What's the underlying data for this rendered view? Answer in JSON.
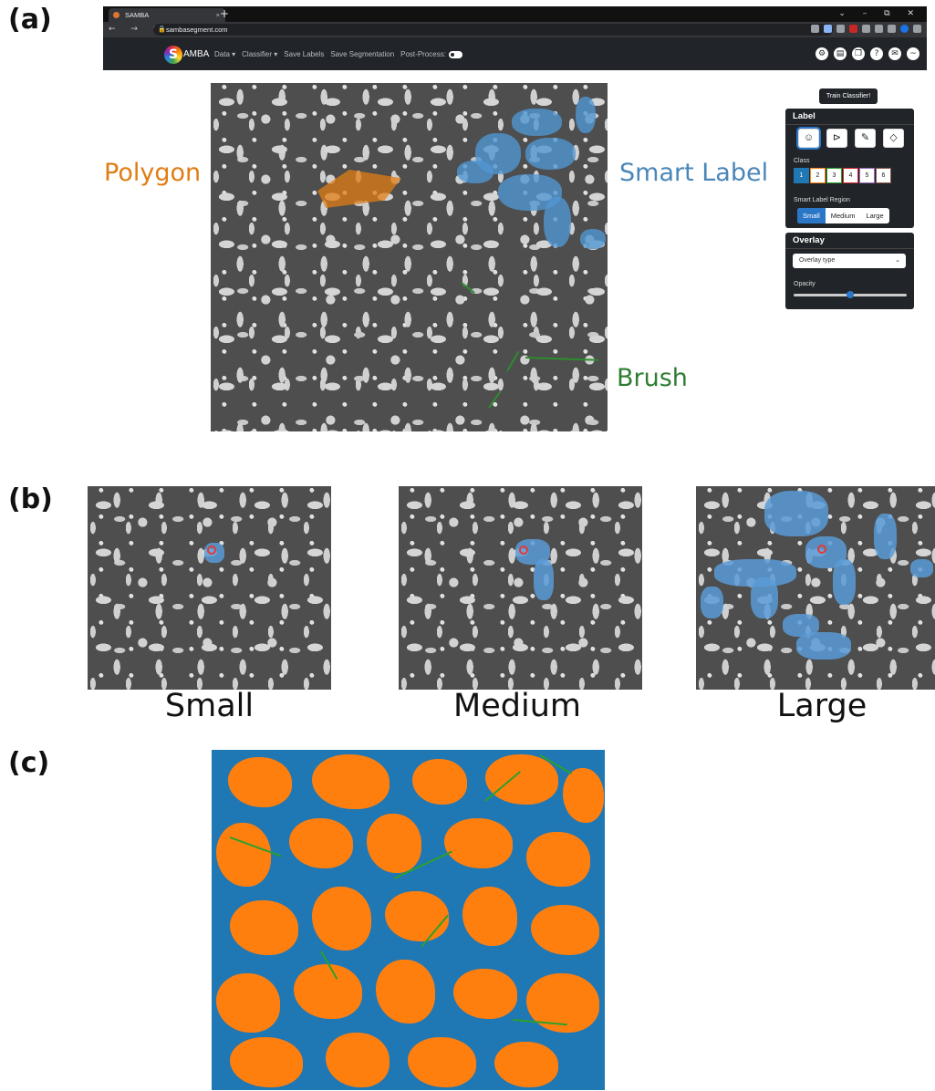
{
  "panels": {
    "a": "(a)",
    "b": "(b)",
    "c": "(c)"
  },
  "browser": {
    "tab_title": "SAMBA",
    "tab_close": "×",
    "new_tab": "+",
    "window_controls": "⌄ – ⧉ ✕",
    "nav_icons": "← → C",
    "url": "sambasegment.com"
  },
  "app": {
    "logo_s": "S",
    "logo_text": "AMBA",
    "nav": [
      "Data ▾",
      "Classifier ▾",
      "Save Labels",
      "Save Segmentation",
      "Post-Process:"
    ],
    "icons": [
      "gear-icon",
      "document-icon",
      "copy-icon",
      "help-icon",
      "mail-icon",
      "github-icon"
    ]
  },
  "annotations": {
    "polygon": "Polygon",
    "smart_label": "Smart Label",
    "brush": "Brush"
  },
  "controls": {
    "train_button": "Train Classifier!",
    "label_card": {
      "title": "Label",
      "class_label": "Class",
      "classes": [
        "1",
        "2",
        "3",
        "4",
        "5",
        "6"
      ],
      "region_label": "Smart Label Region",
      "regions": [
        "Small",
        "Medium",
        "Large"
      ],
      "active_region": "Small"
    },
    "overlay_card": {
      "title": "Overlay",
      "select_value": "Overlay type",
      "opacity_label": "Opacity",
      "opacity": 0.5
    }
  },
  "sizes": {
    "small": "Small",
    "medium": "Medium",
    "large": "Large"
  },
  "colors": {
    "polygon": "#e07d14",
    "smart_label": "#4a86b8",
    "brush": "#2e7d32",
    "seg_blue": "#1f77b4",
    "seg_orange": "#ff7f0e",
    "seg_green": "#2ca02c"
  }
}
